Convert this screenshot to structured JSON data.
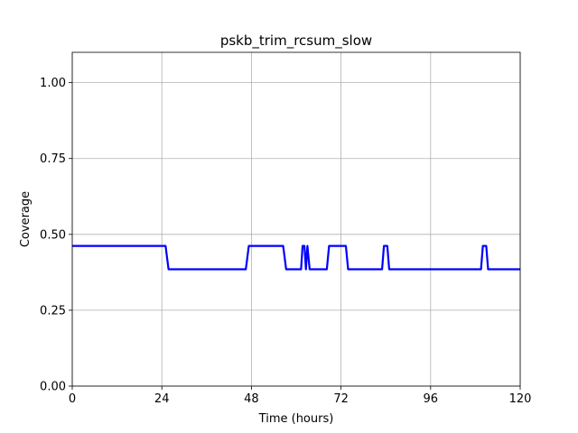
{
  "chart_data": {
    "type": "line",
    "title": "pskb_trim_rcsum_slow",
    "xlabel": "Time (hours)",
    "ylabel": "Coverage",
    "xlim": [
      0,
      120
    ],
    "ylim": [
      0,
      1.1
    ],
    "x_ticks": [
      0,
      24,
      48,
      72,
      96,
      120
    ],
    "x_tick_labels": [
      "0",
      "24",
      "48",
      "72",
      "96",
      "120"
    ],
    "y_ticks": [
      0,
      0.25,
      0.5,
      0.75,
      1.0
    ],
    "y_tick_labels": [
      "0.00",
      "0.25",
      "0.50",
      "0.75",
      "1.00"
    ],
    "grid": true,
    "line_color": "#0000ff",
    "series": [
      {
        "x": [
          0,
          25,
          25.8,
          46.5,
          47.3,
          56.5,
          57.3,
          61.3,
          61.7,
          62.2,
          62.6,
          63.0,
          63.6,
          68.2,
          68.8,
          73.3,
          73.9,
          83.0,
          83.5,
          84.4,
          84.9,
          109.5,
          110.0,
          110.9,
          111.4,
          120
        ],
        "y": [
          0.462,
          0.462,
          0.385,
          0.385,
          0.462,
          0.462,
          0.385,
          0.385,
          0.462,
          0.462,
          0.385,
          0.462,
          0.385,
          0.385,
          0.462,
          0.462,
          0.385,
          0.385,
          0.462,
          0.462,
          0.385,
          0.385,
          0.462,
          0.462,
          0.385,
          0.385
        ]
      }
    ]
  }
}
